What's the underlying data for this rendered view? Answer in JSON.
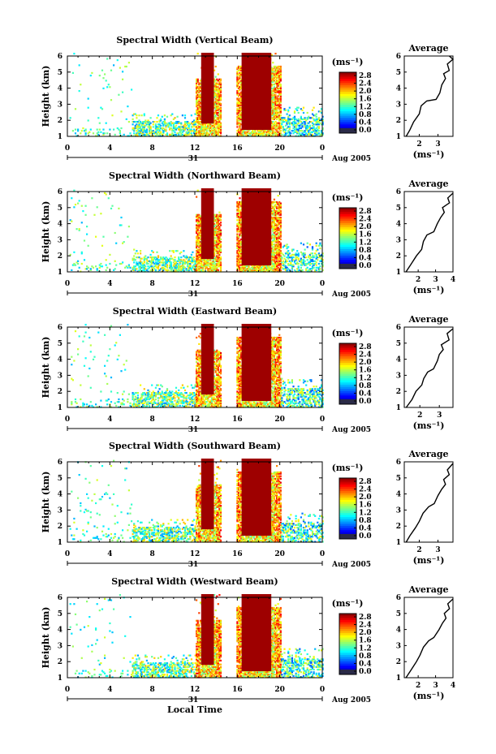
{
  "figure": {
    "xlabel": "Local Time",
    "ylabel": "Height (km)",
    "day_label": "31",
    "month_label": "Aug 2005",
    "colorbar_unit": "(ms⁻¹)",
    "avg_title": "Average",
    "avg_xlabel": "(ms⁻¹)"
  },
  "chart_data": [
    {
      "type": "heatmap",
      "title": "Spectral Width (Vertical Beam)",
      "ylabel": "Height (km)",
      "xlim": [
        0,
        24
      ],
      "ylim": [
        1,
        6
      ],
      "xticks": [
        "0",
        "4",
        "8",
        "12",
        "16",
        "20",
        "0"
      ],
      "yticks": [
        "1",
        "2",
        "3",
        "4",
        "5",
        "6"
      ],
      "colorbar": {
        "min": 0.0,
        "max": 2.8,
        "ticks": [
          "2.8",
          "2.4",
          "2.0",
          "1.6",
          "1.2",
          "0.8",
          "0.4",
          "0.0"
        ]
      },
      "precip_blocks": [
        {
          "t": [
            12.6,
            13.8
          ],
          "z": [
            1.8,
            6.2
          ]
        },
        {
          "t": [
            16.4,
            19.2
          ],
          "z": [
            1.4,
            6.2
          ]
        }
      ],
      "average": {
        "title": "Average",
        "xlim": [
          1.2,
          3.8
        ],
        "xticks": [
          "2",
          "3"
        ],
        "profile": [
          [
            1.3,
            1.0
          ],
          [
            1.5,
            1.4
          ],
          [
            1.7,
            1.9
          ],
          [
            2.0,
            2.4
          ],
          [
            2.1,
            2.9
          ],
          [
            2.4,
            3.2
          ],
          [
            2.9,
            3.3
          ],
          [
            3.1,
            3.7
          ],
          [
            3.2,
            4.2
          ],
          [
            3.4,
            4.6
          ],
          [
            3.3,
            4.9
          ],
          [
            3.6,
            5.1
          ],
          [
            3.5,
            5.5
          ],
          [
            3.8,
            5.8
          ],
          [
            3.6,
            6.0
          ]
        ]
      }
    },
    {
      "type": "heatmap",
      "title": "Spectral Width (Northward Beam)",
      "ylabel": "Height (km)",
      "xlim": [
        0,
        24
      ],
      "ylim": [
        1,
        6
      ],
      "xticks": [
        "0",
        "4",
        "8",
        "12",
        "16",
        "20",
        "0"
      ],
      "yticks": [
        "1",
        "2",
        "3",
        "4",
        "5",
        "6"
      ],
      "colorbar": {
        "min": 0.0,
        "max": 2.8,
        "ticks": [
          "2.8",
          "2.4",
          "2.0",
          "1.6",
          "1.2",
          "0.8",
          "0.4",
          "0.0"
        ]
      },
      "precip_blocks": [
        {
          "t": [
            12.6,
            13.8
          ],
          "z": [
            1.8,
            6.2
          ]
        },
        {
          "t": [
            16.4,
            19.2
          ],
          "z": [
            1.4,
            6.2
          ]
        }
      ],
      "average": {
        "title": "Average",
        "xlim": [
          1.2,
          4.0
        ],
        "xticks": [
          "2",
          "3",
          "4"
        ],
        "profile": [
          [
            1.3,
            1.0
          ],
          [
            1.6,
            1.5
          ],
          [
            1.9,
            2.0
          ],
          [
            2.2,
            2.4
          ],
          [
            2.3,
            2.9
          ],
          [
            2.5,
            3.3
          ],
          [
            2.9,
            3.5
          ],
          [
            3.1,
            4.0
          ],
          [
            3.3,
            4.4
          ],
          [
            3.5,
            4.7
          ],
          [
            3.4,
            5.0
          ],
          [
            3.8,
            5.3
          ],
          [
            3.7,
            5.6
          ],
          [
            4.0,
            5.9
          ]
        ]
      }
    },
    {
      "type": "heatmap",
      "title": "Spectral Width (Eastward Beam)",
      "ylabel": "Height (km)",
      "xlim": [
        0,
        24
      ],
      "ylim": [
        1,
        6
      ],
      "xticks": [
        "0",
        "4",
        "8",
        "12",
        "16",
        "20",
        "0"
      ],
      "yticks": [
        "1",
        "2",
        "3",
        "4",
        "5",
        "6"
      ],
      "colorbar": {
        "min": 0.0,
        "max": 2.8,
        "ticks": [
          "2.8",
          "2.4",
          "2.0",
          "1.6",
          "1.2",
          "0.8",
          "0.4",
          "0.0"
        ]
      },
      "precip_blocks": [
        {
          "t": [
            12.6,
            13.8
          ],
          "z": [
            1.8,
            6.2
          ]
        },
        {
          "t": [
            16.4,
            19.2
          ],
          "z": [
            1.4,
            6.2
          ]
        }
      ],
      "average": {
        "title": "Average",
        "xlim": [
          1.2,
          3.7
        ],
        "xticks": [
          "2",
          "3"
        ],
        "profile": [
          [
            1.3,
            1.0
          ],
          [
            1.6,
            1.5
          ],
          [
            1.8,
            2.0
          ],
          [
            2.1,
            2.4
          ],
          [
            2.2,
            2.8
          ],
          [
            2.4,
            3.2
          ],
          [
            2.7,
            3.4
          ],
          [
            2.9,
            3.9
          ],
          [
            3.0,
            4.3
          ],
          [
            3.2,
            4.6
          ],
          [
            3.1,
            4.9
          ],
          [
            3.5,
            5.2
          ],
          [
            3.4,
            5.6
          ],
          [
            3.7,
            5.9
          ]
        ]
      }
    },
    {
      "type": "heatmap",
      "title": "Spectral Width (Southward Beam)",
      "ylabel": "Height (km)",
      "xlim": [
        0,
        24
      ],
      "ylim": [
        1,
        6
      ],
      "xticks": [
        "0",
        "4",
        "8",
        "12",
        "16",
        "20",
        "0"
      ],
      "yticks": [
        "1",
        "2",
        "3",
        "4",
        "5",
        "6"
      ],
      "colorbar": {
        "min": 0.0,
        "max": 2.8,
        "ticks": [
          "2.8",
          "2.4",
          "2.0",
          "1.6",
          "1.2",
          "0.8",
          "0.4",
          "0.0"
        ]
      },
      "precip_blocks": [
        {
          "t": [
            12.6,
            13.8
          ],
          "z": [
            1.8,
            6.2
          ]
        },
        {
          "t": [
            16.4,
            19.2
          ],
          "z": [
            1.4,
            6.2
          ]
        }
      ],
      "average": {
        "title": "Average",
        "xlim": [
          1.2,
          3.8
        ],
        "xticks": [
          "2",
          "3"
        ],
        "profile": [
          [
            1.3,
            1.0
          ],
          [
            1.5,
            1.4
          ],
          [
            1.8,
            1.9
          ],
          [
            2.0,
            2.3
          ],
          [
            2.2,
            2.8
          ],
          [
            2.5,
            3.2
          ],
          [
            2.8,
            3.4
          ],
          [
            3.0,
            3.9
          ],
          [
            3.2,
            4.3
          ],
          [
            3.4,
            4.6
          ],
          [
            3.3,
            4.9
          ],
          [
            3.6,
            5.2
          ],
          [
            3.5,
            5.5
          ],
          [
            3.8,
            5.9
          ]
        ]
      }
    },
    {
      "type": "heatmap",
      "title": "Spectral Width (Westward Beam)",
      "ylabel": "Height (km)",
      "xlim": [
        0,
        24
      ],
      "ylim": [
        1,
        6
      ],
      "xticks": [
        "0",
        "4",
        "8",
        "12",
        "16",
        "20",
        "0"
      ],
      "yticks": [
        "1",
        "2",
        "3",
        "4",
        "5",
        "6"
      ],
      "colorbar": {
        "min": 0.0,
        "max": 2.8,
        "ticks": [
          "2.8",
          "2.4",
          "2.0",
          "1.6",
          "1.2",
          "0.8",
          "0.4",
          "0.0"
        ]
      },
      "precip_blocks": [
        {
          "t": [
            12.6,
            13.8
          ],
          "z": [
            1.8,
            6.2
          ]
        },
        {
          "t": [
            16.4,
            19.2
          ],
          "z": [
            1.4,
            6.2
          ]
        }
      ],
      "average": {
        "title": "Average",
        "xlim": [
          1.2,
          4.0
        ],
        "xticks": [
          "2",
          "3",
          "4"
        ],
        "profile": [
          [
            1.3,
            1.0
          ],
          [
            1.6,
            1.5
          ],
          [
            1.9,
            2.0
          ],
          [
            2.1,
            2.4
          ],
          [
            2.3,
            2.9
          ],
          [
            2.6,
            3.3
          ],
          [
            2.9,
            3.5
          ],
          [
            3.2,
            4.0
          ],
          [
            3.4,
            4.4
          ],
          [
            3.6,
            4.7
          ],
          [
            3.5,
            5.0
          ],
          [
            3.8,
            5.3
          ],
          [
            3.7,
            5.6
          ],
          [
            4.0,
            5.9
          ]
        ]
      }
    }
  ]
}
